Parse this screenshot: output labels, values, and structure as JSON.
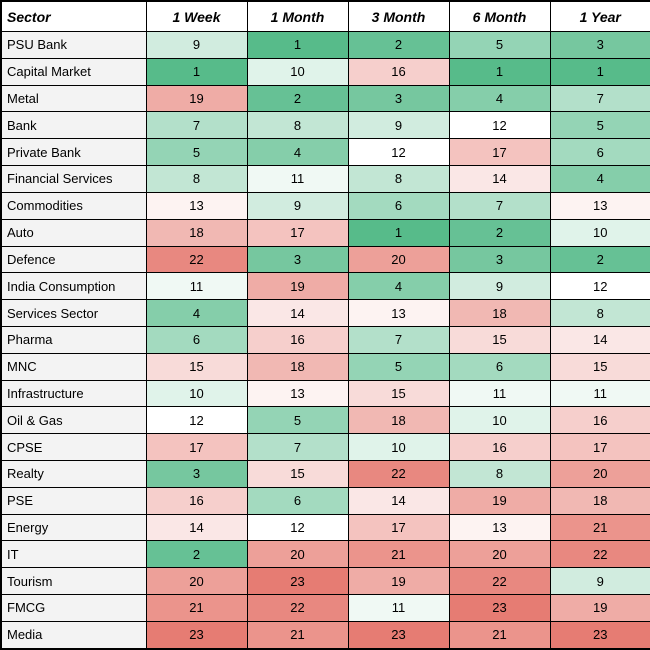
{
  "colors": {
    "border": "#000000",
    "text": "#000000",
    "header_bg": "#FFFFFF",
    "sector_cell_bg": "#F3F3F3"
  },
  "chart_data": {
    "type": "heatmap",
    "columns": [
      "Sector",
      "1 Week",
      "1 Month",
      "3 Month",
      "6 Month",
      "1 Year"
    ],
    "rows": [
      "PSU Bank",
      "Capital Market",
      "Metal",
      "Bank",
      "Private Bank",
      "Financial Services",
      "Commodities",
      "Auto",
      "Defence",
      "India Consumption",
      "Services Sector",
      "Pharma",
      "MNC",
      "Infrastructure",
      "Oil & Gas",
      "CPSE",
      "Realty",
      "PSE",
      "Energy",
      "IT",
      "Tourism",
      "FMCG",
      "Media"
    ],
    "values": [
      [
        9,
        1,
        2,
        5,
        3
      ],
      [
        1,
        10,
        16,
        1,
        1
      ],
      [
        19,
        2,
        3,
        4,
        7
      ],
      [
        7,
        8,
        9,
        12,
        5
      ],
      [
        5,
        4,
        12,
        17,
        6
      ],
      [
        8,
        11,
        8,
        14,
        4
      ],
      [
        13,
        9,
        6,
        7,
        13
      ],
      [
        18,
        17,
        1,
        2,
        10
      ],
      [
        22,
        3,
        20,
        3,
        2
      ],
      [
        11,
        19,
        4,
        9,
        12
      ],
      [
        4,
        14,
        13,
        18,
        8
      ],
      [
        6,
        16,
        7,
        15,
        14
      ],
      [
        15,
        18,
        5,
        6,
        15
      ],
      [
        10,
        13,
        15,
        11,
        11
      ],
      [
        12,
        5,
        18,
        10,
        16
      ],
      [
        17,
        7,
        10,
        16,
        17
      ],
      [
        3,
        15,
        22,
        8,
        20
      ],
      [
        16,
        6,
        14,
        19,
        18
      ],
      [
        14,
        12,
        17,
        13,
        21
      ],
      [
        2,
        20,
        21,
        20,
        22
      ],
      [
        20,
        23,
        19,
        22,
        9
      ],
      [
        21,
        22,
        11,
        23,
        19
      ],
      [
        23,
        21,
        23,
        21,
        23
      ]
    ],
    "color_scale": {
      "min": {
        "rank": 1,
        "color": "#57BB8A"
      },
      "mid": {
        "rank": 12,
        "color": "#FFFFFF"
      },
      "max": {
        "rank": 23,
        "color": "#E67C73"
      }
    },
    "legend_position": "none",
    "grid": true
  }
}
